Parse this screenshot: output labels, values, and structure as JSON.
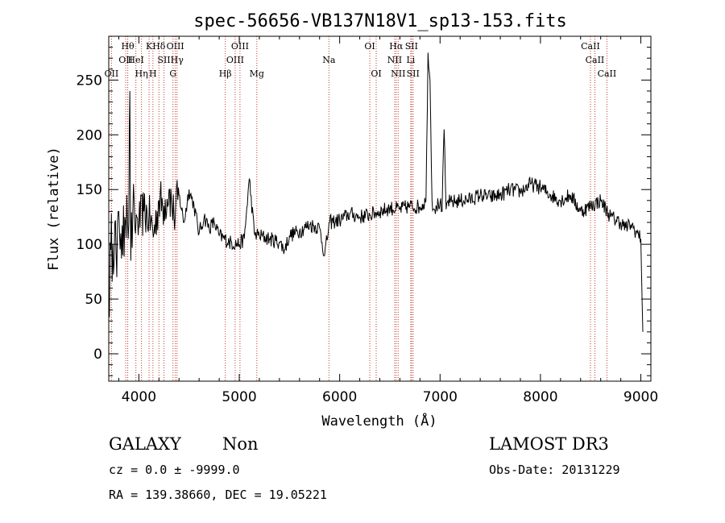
{
  "chart_data": {
    "type": "line",
    "title": "spec-56656-VB137N18V1_sp13-153.fits",
    "xlabel": "Wavelength (Å)",
    "ylabel": "Flux (relative)",
    "xlim": [
      3700,
      9100
    ],
    "ylim": [
      -25,
      290
    ],
    "xticks": [
      4000,
      5000,
      6000,
      7000,
      8000,
      9000
    ],
    "yticks": [
      0,
      50,
      100,
      150,
      200,
      250
    ],
    "grid": false,
    "series": [
      {
        "name": "spectrum",
        "x": [
          3700,
          3720,
          3740,
          3760,
          3780,
          3800,
          3820,
          3840,
          3860,
          3880,
          3900,
          3910,
          3920,
          3940,
          3960,
          3980,
          4000,
          4050,
          4100,
          4150,
          4200,
          4250,
          4300,
          4350,
          4400,
          4450,
          4500,
          4550,
          4600,
          4650,
          4700,
          4750,
          4800,
          4900,
          5000,
          5050,
          5100,
          5150,
          5200,
          5300,
          5400,
          5450,
          5500,
          5600,
          5700,
          5800,
          5850,
          5900,
          6000,
          6100,
          6200,
          6300,
          6400,
          6500,
          6600,
          6700,
          6800,
          6860,
          6880,
          6900,
          6920,
          6940,
          6960,
          7000,
          7020,
          7040,
          7060,
          7080,
          7100,
          7200,
          7300,
          7400,
          7500,
          7600,
          7700,
          7800,
          7900,
          8000,
          8100,
          8200,
          8300,
          8400,
          8500,
          8600,
          8700,
          8800,
          8850,
          8900,
          8950,
          9000,
          9020
        ],
        "y": [
          45,
          95,
          100,
          120,
          70,
          130,
          110,
          90,
          125,
          145,
          120,
          240,
          85,
          130,
          115,
          125,
          120,
          130,
          125,
          110,
          140,
          135,
          150,
          125,
          145,
          120,
          150,
          135,
          110,
          125,
          115,
          120,
          108,
          102,
          100,
          105,
          160,
          110,
          108,
          105,
          102,
          95,
          108,
          112,
          118,
          115,
          90,
          120,
          122,
          128,
          125,
          127,
          130,
          133,
          132,
          135,
          134,
          140,
          275,
          250,
          140,
          132,
          135,
          138,
          130,
          205,
          132,
          140,
          138,
          140,
          141,
          145,
          143,
          145,
          150,
          148,
          155,
          152,
          145,
          140,
          145,
          130,
          135,
          140,
          125,
          120,
          115,
          118,
          112,
          105,
          20
        ]
      }
    ],
    "lines": [
      {
        "wl": 3727,
        "label": "OII",
        "row": 3
      },
      {
        "wl": 3869,
        "label": "OII",
        "row": 2
      },
      {
        "wl": 3889,
        "label": "Hθ",
        "row": 1
      },
      {
        "wl": 3970,
        "label": "HeI",
        "row": 2
      },
      {
        "wl": 4026,
        "label": "Hη",
        "row": 3
      },
      {
        "wl": 4102,
        "label": "K",
        "row": 1
      },
      {
        "wl": 4140,
        "label": "H",
        "row": 3
      },
      {
        "wl": 4200,
        "label": "Hδ",
        "row": 1
      },
      {
        "wl": 4250,
        "label": "SII",
        "row": 2
      },
      {
        "wl": 4340,
        "label": "G",
        "row": 3
      },
      {
        "wl": 4363,
        "label": "OIII",
        "row": 1
      },
      {
        "wl": 4380,
        "label": "Hγ",
        "row": 2
      },
      {
        "wl": 4861,
        "label": "Hβ",
        "row": 3
      },
      {
        "wl": 4959,
        "label": "OIII",
        "row": 2
      },
      {
        "wl": 5007,
        "label": "OIII",
        "row": 1
      },
      {
        "wl": 5175,
        "label": "Mg",
        "row": 3
      },
      {
        "wl": 5893,
        "label": "Na",
        "row": 2
      },
      {
        "wl": 6300,
        "label": "OI",
        "row": 1
      },
      {
        "wl": 6364,
        "label": "OI",
        "row": 3
      },
      {
        "wl": 6548,
        "label": "NII",
        "row": 2
      },
      {
        "wl": 6563,
        "label": "Hα",
        "row": 1
      },
      {
        "wl": 6583,
        "label": "NII",
        "row": 3
      },
      {
        "wl": 6708,
        "label": "Li",
        "row": 2
      },
      {
        "wl": 6716,
        "label": "SII",
        "row": 1
      },
      {
        "wl": 6731,
        "label": "SII",
        "row": 3
      },
      {
        "wl": 8498,
        "label": "CaII",
        "row": 1
      },
      {
        "wl": 8542,
        "label": "CaII",
        "row": 2
      },
      {
        "wl": 8662,
        "label": "CaII",
        "row": 3
      }
    ]
  },
  "info": {
    "object_class": "GALAXY",
    "subclass": "Non",
    "cz": "cz = 0.0 ± -9999.0",
    "coords": "RA = 139.38660, DEC =  19.05221",
    "survey": "LAMOST DR3",
    "obs_date": "Obs-Date: 20131229"
  }
}
